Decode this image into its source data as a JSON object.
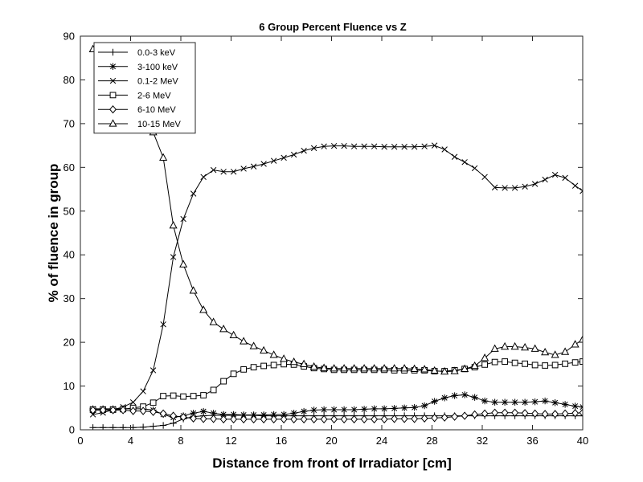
{
  "chart_data": {
    "type": "line",
    "title": "6 Group Percent Fluence vs Z",
    "xlabel": "Distance from front of Irradiator [cm]",
    "ylabel": "% of fluence in group",
    "xlim": [
      0,
      40
    ],
    "ylim": [
      0,
      90
    ],
    "xticks": [
      0,
      4,
      8,
      12,
      16,
      20,
      24,
      28,
      32,
      36,
      40
    ],
    "yticks": [
      0,
      10,
      20,
      30,
      40,
      50,
      60,
      70,
      80,
      90
    ],
    "grid": false,
    "legend_position": "top-left",
    "x": [
      1.0,
      1.8,
      2.6,
      3.4,
      4.2,
      5.0,
      5.8,
      6.6,
      7.4,
      8.2,
      9.0,
      9.8,
      10.6,
      11.4,
      12.2,
      13.0,
      13.8,
      14.6,
      15.4,
      16.2,
      17.0,
      17.8,
      18.6,
      19.4,
      20.2,
      21.0,
      21.8,
      22.6,
      23.4,
      24.2,
      25.0,
      25.8,
      26.6,
      27.4,
      28.2,
      29.0,
      29.8,
      30.6,
      31.4,
      32.2,
      33.0,
      33.8,
      34.6,
      35.4,
      36.2,
      37.0,
      37.8,
      38.6,
      39.4,
      40.0
    ],
    "series": [
      {
        "name": "0.0-3 keV",
        "marker": "plus",
        "values": [
          0.5,
          0.5,
          0.5,
          0.5,
          0.5,
          0.6,
          0.8,
          1.0,
          1.5,
          2.5,
          3.0,
          3.2,
          3.3,
          3.3,
          3.3,
          3.3,
          3.3,
          3.2,
          3.2,
          3.2,
          3.2,
          3.2,
          3.2,
          3.2,
          3.2,
          3.2,
          3.2,
          3.2,
          3.2,
          3.2,
          3.2,
          3.2,
          3.2,
          3.2,
          3.2,
          3.2,
          3.2,
          3.2,
          3.2,
          3.2,
          3.2,
          3.2,
          3.2,
          3.2,
          3.2,
          3.2,
          3.2,
          3.2,
          3.2,
          3.2
        ]
      },
      {
        "name": "3-100 keV",
        "marker": "star",
        "values": [
          4.8,
          4.8,
          4.8,
          4.8,
          4.8,
          4.8,
          4.5,
          3.5,
          2.8,
          3.2,
          3.8,
          4.2,
          3.8,
          3.5,
          3.5,
          3.4,
          3.4,
          3.4,
          3.5,
          3.5,
          3.8,
          4.2,
          4.5,
          4.6,
          4.6,
          4.6,
          4.6,
          4.7,
          4.8,
          4.8,
          4.9,
          5.0,
          5.1,
          5.5,
          6.5,
          7.3,
          7.8,
          8.0,
          7.4,
          6.6,
          6.3,
          6.3,
          6.3,
          6.3,
          6.4,
          6.6,
          6.2,
          5.8,
          5.4,
          5.2
        ]
      },
      {
        "name": "0.1-2 MeV",
        "marker": "x",
        "values": [
          3.5,
          3.9,
          4.6,
          5.2,
          6.3,
          8.8,
          13.6,
          24.1,
          39.5,
          48.2,
          54.0,
          57.8,
          59.4,
          59.0,
          59.0,
          59.7,
          60.2,
          60.8,
          61.5,
          62.2,
          62.9,
          63.8,
          64.4,
          64.8,
          64.9,
          64.9,
          64.8,
          64.8,
          64.8,
          64.7,
          64.7,
          64.7,
          64.7,
          64.8,
          65.0,
          64.1,
          62.4,
          61.2,
          59.8,
          57.8,
          55.4,
          55.3,
          55.3,
          55.6,
          56.2,
          57.2,
          58.3,
          57.6,
          55.8,
          54.6
        ]
      },
      {
        "name": "2-6 MeV",
        "marker": "square",
        "values": [
          4.6,
          4.6,
          4.6,
          4.7,
          5.0,
          5.3,
          6.2,
          7.7,
          7.8,
          7.6,
          7.7,
          7.9,
          9.1,
          11.1,
          12.8,
          13.8,
          14.3,
          14.6,
          14.8,
          15.0,
          14.9,
          14.5,
          14.1,
          13.9,
          13.7,
          13.7,
          13.7,
          13.7,
          13.7,
          13.7,
          13.6,
          13.6,
          13.6,
          13.6,
          13.4,
          13.4,
          13.6,
          13.9,
          14.3,
          14.9,
          15.5,
          15.6,
          15.3,
          15.1,
          14.8,
          14.7,
          14.8,
          15.1,
          15.4,
          15.6
        ]
      },
      {
        "name": "6-10 MeV",
        "marker": "diamond",
        "values": [
          4.5,
          4.5,
          4.5,
          4.5,
          4.3,
          4.3,
          4.1,
          3.7,
          3.2,
          2.9,
          2.6,
          2.5,
          2.5,
          2.4,
          2.4,
          2.4,
          2.4,
          2.4,
          2.4,
          2.4,
          2.4,
          2.4,
          2.4,
          2.4,
          2.4,
          2.4,
          2.4,
          2.4,
          2.4,
          2.4,
          2.5,
          2.5,
          2.5,
          2.6,
          2.7,
          2.8,
          3.0,
          3.2,
          3.5,
          3.7,
          3.9,
          3.9,
          3.9,
          3.8,
          3.7,
          3.6,
          3.6,
          3.7,
          3.8,
          3.9
        ]
      },
      {
        "name": "10-15 MeV",
        "marker": "triangle",
        "values": [
          87.0,
          84.5,
          82.0,
          78.5,
          75.0,
          71.5,
          68.0,
          62.2,
          46.7,
          37.8,
          31.8,
          27.4,
          24.6,
          23.0,
          21.6,
          20.2,
          19.1,
          18.1,
          17.1,
          16.2,
          15.5,
          15.0,
          14.4,
          14.1,
          14.0,
          14.0,
          14.0,
          14.0,
          14.0,
          14.0,
          14.0,
          14.0,
          13.9,
          13.8,
          13.5,
          13.3,
          13.4,
          13.9,
          14.6,
          16.4,
          18.5,
          19.0,
          19.0,
          18.8,
          18.5,
          17.7,
          17.1,
          17.8,
          19.5,
          20.6
        ]
      }
    ]
  }
}
